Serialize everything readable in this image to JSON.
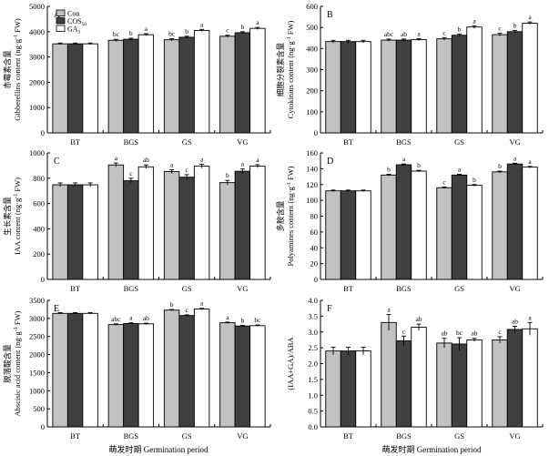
{
  "colors": {
    "con": "#c2c2c2",
    "cos": "#404040",
    "ga": "#ffffff",
    "axis": "#000000"
  },
  "legend": {
    "entries": [
      {
        "key": "con",
        "name": "Con"
      },
      {
        "key": "cos",
        "name": "COS",
        "sub": "50"
      },
      {
        "key": "ga",
        "name": "GA",
        "sub": "3"
      }
    ]
  },
  "xlabel": {
    "cn": "萌发时期",
    "en": "Germination period"
  },
  "chart_data": [
    {
      "type": "bar",
      "panel": "A",
      "ylabel_cn": "赤霉素含量",
      "ylabel_en": "Gibberellins content (ng·g",
      "ylabel_sup": "-1",
      "ylabel_tail": " FW)",
      "ylim": [
        0,
        5000
      ],
      "yticks": [
        0,
        1000,
        2000,
        3000,
        4000,
        5000
      ],
      "categories": [
        "BT",
        "BGS",
        "GS",
        "VG"
      ],
      "series": [
        {
          "key": "con",
          "name": "Con",
          "values": [
            3520,
            3660,
            3680,
            3820
          ],
          "errors": [
            30,
            40,
            40,
            40
          ],
          "letters": [
            "",
            "bc",
            "bc",
            "c"
          ]
        },
        {
          "key": "cos",
          "name": "COS50",
          "values": [
            3520,
            3700,
            3780,
            3960
          ],
          "errors": [
            30,
            40,
            40,
            40
          ],
          "letters": [
            "",
            "b",
            "b",
            "b"
          ]
        },
        {
          "key": "ga",
          "name": "GA3",
          "values": [
            3520,
            3880,
            4050,
            4130
          ],
          "errors": [
            30,
            40,
            40,
            40
          ],
          "letters": [
            "",
            "a",
            "a",
            "a"
          ]
        }
      ]
    },
    {
      "type": "bar",
      "panel": "B",
      "ylabel_cn": "细胞分裂素含量",
      "ylabel_en": "Cytokinins content (ng·g",
      "ylabel_sup": "-1",
      "ylabel_tail": " FW)",
      "ylim": [
        0,
        600
      ],
      "yticks": [
        0,
        100,
        200,
        300,
        400,
        500,
        600
      ],
      "categories": [
        "BT",
        "BGS",
        "GS",
        "VG"
      ],
      "series": [
        {
          "key": "con",
          "name": "Con",
          "values": [
            433,
            440,
            446,
            466
          ],
          "errors": [
            6,
            5,
            6,
            6
          ],
          "letters": [
            "",
            "abc",
            "c",
            "c"
          ]
        },
        {
          "key": "cos",
          "name": "COS50",
          "values": [
            433,
            440,
            463,
            480
          ],
          "errors": [
            6,
            5,
            6,
            6
          ],
          "letters": [
            "",
            "ab",
            "b",
            "b"
          ]
        },
        {
          "key": "ga",
          "name": "GA3",
          "values": [
            433,
            442,
            502,
            520
          ],
          "errors": [
            6,
            5,
            6,
            6
          ],
          "letters": [
            "",
            "a",
            "a",
            "a"
          ]
        }
      ]
    },
    {
      "type": "bar",
      "panel": "C",
      "ylabel_cn": "生长素含量",
      "ylabel_en": "IAA content (ng·g",
      "ylabel_sup": "-1",
      "ylabel_tail": " FW)",
      "ylim": [
        0,
        1000
      ],
      "yticks": [
        0,
        200,
        400,
        600,
        800,
        1000
      ],
      "categories": [
        "BT",
        "BGS",
        "GS",
        "VG"
      ],
      "series": [
        {
          "key": "con",
          "name": "Con",
          "values": [
            748,
            905,
            852,
            765
          ],
          "errors": [
            15,
            15,
            15,
            18
          ],
          "letters": [
            "",
            "a",
            "a",
            "b"
          ]
        },
        {
          "key": "cos",
          "name": "COS50",
          "values": [
            748,
            780,
            808,
            855
          ],
          "errors": [
            15,
            20,
            20,
            18
          ],
          "letters": [
            "",
            "c",
            "c",
            "a"
          ]
        },
        {
          "key": "ga",
          "name": "GA3",
          "values": [
            748,
            890,
            895,
            895
          ],
          "errors": [
            15,
            15,
            15,
            12
          ],
          "letters": [
            "",
            "ab",
            "a",
            "a"
          ]
        }
      ]
    },
    {
      "type": "bar",
      "panel": "D",
      "ylabel_cn": "多胺含量",
      "ylabel_en": "Polyamines content (ng·g",
      "ylabel_sup": "-1",
      "ylabel_tail": " FW)",
      "ylim": [
        0,
        160
      ],
      "yticks": [
        0,
        20,
        40,
        60,
        80,
        100,
        120,
        140,
        160
      ],
      "categories": [
        "BT",
        "BGS",
        "GS",
        "VG"
      ],
      "series": [
        {
          "key": "con",
          "name": "Con",
          "values": [
            112,
            132,
            116,
            136
          ],
          "errors": [
            1,
            1,
            1,
            1
          ],
          "letters": [
            "",
            "b",
            "c",
            "b"
          ]
        },
        {
          "key": "cos",
          "name": "COS50",
          "values": [
            112,
            145,
            132,
            146
          ],
          "errors": [
            1,
            1,
            1,
            1
          ],
          "letters": [
            "",
            "a",
            "a",
            "a"
          ]
        },
        {
          "key": "ga",
          "name": "GA3",
          "values": [
            112,
            137,
            119,
            142
          ],
          "errors": [
            1,
            1,
            1,
            1
          ],
          "letters": [
            "",
            "b",
            "b",
            "a"
          ]
        }
      ]
    },
    {
      "type": "bar",
      "panel": "E",
      "ylabel_cn": "脱落酸含量",
      "ylabel_en": "Abscisic acid content (ng·g",
      "ylabel_sup": "-1",
      "ylabel_tail": " FW)",
      "ylim": [
        0,
        3500
      ],
      "yticks": [
        0,
        500,
        1000,
        1500,
        2000,
        2500,
        3000,
        3500
      ],
      "categories": [
        "BT",
        "BGS",
        "GS",
        "VG"
      ],
      "series": [
        {
          "key": "con",
          "name": "Con",
          "values": [
            3140,
            2830,
            3230,
            2880
          ],
          "errors": [
            20,
            20,
            20,
            20
          ],
          "letters": [
            "",
            "abc",
            "b",
            "a"
          ]
        },
        {
          "key": "cos",
          "name": "COS50",
          "values": [
            3140,
            2860,
            3080,
            2790
          ],
          "errors": [
            20,
            20,
            20,
            20
          ],
          "letters": [
            "",
            "a",
            "c",
            "b"
          ]
        },
        {
          "key": "ga",
          "name": "GA3",
          "values": [
            3140,
            2850,
            3260,
            2800
          ],
          "errors": [
            20,
            20,
            20,
            20
          ],
          "letters": [
            "",
            "ab",
            "a",
            "bc"
          ]
        }
      ]
    },
    {
      "type": "bar",
      "panel": "F",
      "ylabel_cn": "",
      "ylabel_en": "(IAA+GA)/ABA",
      "ylabel_sup": "",
      "ylabel_tail": "",
      "ylim": [
        0,
        4.0
      ],
      "yticks": [
        0.0,
        0.5,
        1.0,
        1.5,
        2.0,
        2.5,
        3.0,
        3.5,
        4.0
      ],
      "categories": [
        "BT",
        "BGS",
        "GS",
        "VG"
      ],
      "series": [
        {
          "key": "con",
          "name": "Con",
          "values": [
            2.4,
            3.3,
            2.65,
            2.75
          ],
          "errors": [
            0.12,
            0.25,
            0.15,
            0.1
          ],
          "letters": [
            "",
            "a",
            "ab",
            "c"
          ]
        },
        {
          "key": "cos",
          "name": "COS50",
          "values": [
            2.4,
            2.72,
            2.62,
            3.08
          ],
          "errors": [
            0.12,
            0.15,
            0.2,
            0.1
          ],
          "letters": [
            "",
            "c",
            "bc",
            "ab"
          ]
        },
        {
          "key": "ga",
          "name": "GA3",
          "values": [
            2.4,
            3.15,
            2.75,
            3.1
          ],
          "errors": [
            0.12,
            0.1,
            0.05,
            0.2
          ],
          "letters": [
            "",
            "ab",
            "ab",
            "a"
          ]
        }
      ]
    }
  ]
}
